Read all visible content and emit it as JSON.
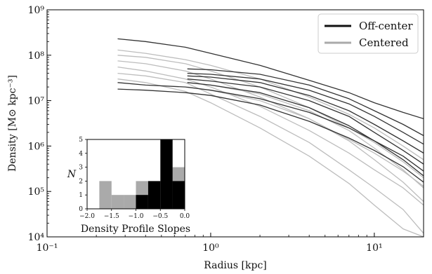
{
  "chart_data": [
    {
      "type": "line",
      "xlabel": "Radius [kpc]",
      "ylabel": "Density [M⊙ kpc⁻³]",
      "x_scale": "log",
      "y_scale": "log",
      "xlim": [
        0.1,
        20
      ],
      "ylim": [
        10000,
        1000000000
      ],
      "x_ticks": [
        {
          "value": 0.1,
          "label": "10⁻¹"
        },
        {
          "value": 1,
          "label": "10⁰"
        },
        {
          "value": 10,
          "label": "10¹"
        }
      ],
      "y_ticks": [
        {
          "value": 10000,
          "label": "10⁴"
        },
        {
          "value": 100000,
          "label": "10⁵"
        },
        {
          "value": 1000000,
          "label": "10⁶"
        },
        {
          "value": 10000000,
          "label": "10⁷"
        },
        {
          "value": 100000000,
          "label": "10⁸"
        },
        {
          "value": 1000000000,
          "label": "10⁹"
        }
      ],
      "legend": {
        "placement": "top-right",
        "entries": [
          {
            "name": "Off-center",
            "color": "#111111"
          },
          {
            "name": "Centered",
            "color": "#aaaaaa"
          }
        ]
      },
      "series": [
        {
          "group": "Off-center",
          "x": [
            0.27,
            0.4,
            0.7,
            1.0,
            2.0,
            4.0,
            7.0,
            10.0,
            15.0,
            20.0
          ],
          "y": [
            230000000,
            200000000,
            150000000,
            110000000,
            60000000,
            28000000,
            15000000,
            9000000,
            5500000,
            4000000
          ]
        },
        {
          "group": "Off-center",
          "x": [
            0.27,
            0.4,
            0.7,
            1.0,
            2.0,
            4.0,
            7.0,
            10.0,
            15.0,
            20.0
          ],
          "y": [
            25000000,
            22000000,
            20000000,
            17000000,
            11000000,
            5500000,
            2500000,
            1300000,
            600000,
            280000
          ]
        },
        {
          "group": "Off-center",
          "x": [
            0.27,
            0.4,
            0.7,
            1.0,
            2.0,
            4.0,
            7.0,
            10.0,
            15.0,
            20.0
          ],
          "y": [
            18000000,
            17000000,
            15000000,
            13000000,
            8000000,
            3500000,
            1500000,
            800000,
            350000,
            160000
          ]
        },
        {
          "group": "Off-center",
          "x": [
            0.72,
            1.0,
            2.0,
            4.0,
            7.0,
            10.0,
            15.0,
            20.0
          ],
          "y": [
            50000000,
            48000000,
            38000000,
            22000000,
            11000000,
            6000000,
            3000000,
            1700000
          ]
        },
        {
          "group": "Off-center",
          "x": [
            0.72,
            1.0,
            2.0,
            4.0,
            7.0,
            10.0,
            15.0,
            20.0
          ],
          "y": [
            40000000,
            38000000,
            30000000,
            17000000,
            8500000,
            4500000,
            2000000,
            1100000
          ]
        },
        {
          "group": "Off-center",
          "x": [
            0.72,
            1.0,
            2.0,
            4.0,
            7.0,
            10.0,
            15.0,
            20.0
          ],
          "y": [
            35000000,
            33000000,
            25000000,
            13000000,
            6000000,
            3000000,
            1300000,
            700000
          ]
        },
        {
          "group": "Off-center",
          "x": [
            0.72,
            1.0,
            2.0,
            4.0,
            7.0,
            10.0,
            15.0,
            20.0
          ],
          "y": [
            30000000,
            27000000,
            20000000,
            10000000,
            4500000,
            2000000,
            800000,
            400000
          ]
        },
        {
          "group": "Off-center",
          "x": [
            0.72,
            1.0,
            2.0,
            4.0,
            7.0,
            10.0,
            15.0,
            20.0
          ],
          "y": [
            25000000,
            22000000,
            15000000,
            7000000,
            2800000,
            1300000,
            500000,
            220000
          ]
        },
        {
          "group": "Centered",
          "x": [
            0.27,
            0.4,
            0.7,
            1.0,
            2.0,
            4.0,
            7.0,
            10.0,
            15.0,
            20.0
          ],
          "y": [
            130000000,
            110000000,
            80000000,
            60000000,
            30000000,
            12000000,
            5000000,
            2500000,
            1000000,
            500000
          ]
        },
        {
          "group": "Centered",
          "x": [
            0.27,
            0.4,
            0.7,
            1.0,
            2.0,
            4.0,
            7.0,
            10.0,
            15.0,
            20.0
          ],
          "y": [
            100000000,
            90000000,
            65000000,
            45000000,
            20000000,
            7000000,
            2500000,
            1200000,
            450000,
            200000
          ]
        },
        {
          "group": "Centered",
          "x": [
            0.27,
            0.4,
            0.7,
            1.0,
            2.0,
            4.0,
            7.0,
            10.0,
            15.0,
            20.0
          ],
          "y": [
            75000000,
            65000000,
            45000000,
            30000000,
            12000000,
            4000000,
            1400000,
            700000,
            280000,
            130000
          ]
        },
        {
          "group": "Centered",
          "x": [
            0.27,
            0.4,
            0.7,
            1.0,
            2.0,
            4.0,
            7.0,
            10.0,
            15.0,
            20.0
          ],
          "y": [
            55000000,
            45000000,
            30000000,
            20000000,
            7500000,
            2200000,
            700000,
            300000,
            120000,
            50000
          ]
        },
        {
          "group": "Centered",
          "x": [
            0.27,
            0.4,
            0.7,
            1.0,
            2.0,
            4.0,
            7.0,
            10.0,
            15.0,
            20.0
          ],
          "y": [
            40000000,
            35000000,
            25000000,
            14000000,
            4500000,
            1200000,
            300000,
            120000,
            40000,
            12000
          ]
        },
        {
          "group": "Centered",
          "x": [
            0.27,
            0.4,
            0.7,
            1.0,
            2.0,
            4.0,
            7.0,
            10.0,
            15.0,
            20.0
          ],
          "y": [
            30000000,
            25000000,
            16000000,
            9000000,
            2500000,
            600000,
            150000,
            50000,
            15000,
            10000
          ]
        },
        {
          "group": "Centered",
          "x": [
            0.72,
            1.0,
            2.0,
            4.0,
            7.0,
            10.0,
            15.0,
            20.0
          ],
          "y": [
            25000000,
            22000000,
            14000000,
            6000000,
            2200000,
            900000,
            300000,
            120000
          ]
        },
        {
          "group": "Centered",
          "x": [
            0.72,
            1.0,
            2.0,
            4.0,
            7.0,
            10.0,
            15.0,
            20.0
          ],
          "y": [
            20000000,
            17000000,
            10000000,
            4000000,
            1300000,
            500000,
            160000,
            60000
          ]
        }
      ]
    },
    {
      "type": "bar",
      "title": "",
      "xlabel": "Density Profile Slopes",
      "ylabel": "N",
      "xlim": [
        -2.0,
        0.0
      ],
      "ylim": [
        0,
        5
      ],
      "x_ticks": [
        "−2.0",
        "−1.5",
        "−1.0",
        "−0.5",
        "0.0"
      ],
      "y_ticks": [
        "0",
        "1",
        "2",
        "3",
        "4",
        "5"
      ],
      "bin_width": 0.25,
      "series": [
        {
          "name": "Centered",
          "color": "#aaaaaa",
          "bins": [
            {
              "left": -1.75,
              "count": 2
            },
            {
              "left": -1.5,
              "count": 1
            },
            {
              "left": -1.25,
              "count": 1
            },
            {
              "left": -1.0,
              "count": 2
            },
            {
              "left": -0.5,
              "count": 2
            },
            {
              "left": -0.25,
              "count": 3
            }
          ]
        },
        {
          "name": "Off-center",
          "color": "#000000",
          "bins": [
            {
              "left": -1.0,
              "count": 1
            },
            {
              "left": -0.75,
              "count": 2
            },
            {
              "left": -0.5,
              "count": 5
            },
            {
              "left": -0.25,
              "count": 2
            }
          ]
        }
      ]
    }
  ]
}
